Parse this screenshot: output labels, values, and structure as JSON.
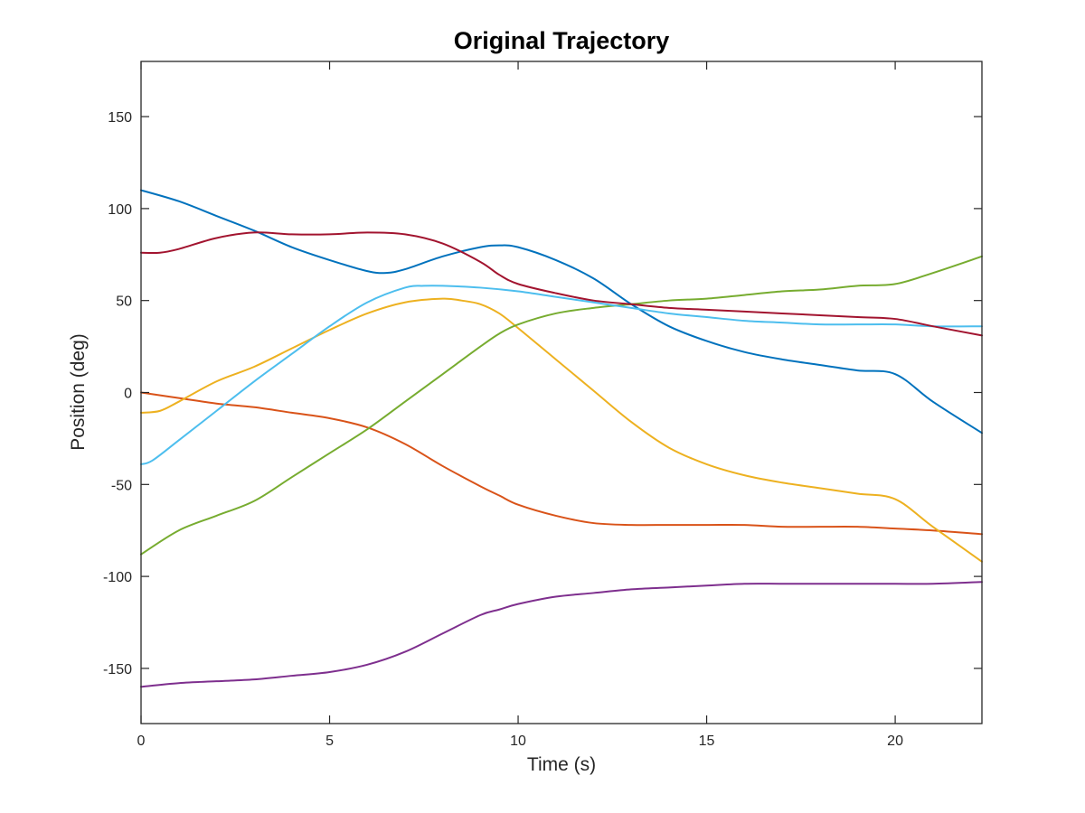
{
  "chart_data": {
    "type": "line",
    "title": "Original Trajectory",
    "xlabel": "Time (s)",
    "ylabel": "Position (deg)",
    "xlim": [
      0,
      22.3
    ],
    "ylim": [
      -180,
      180
    ],
    "xticks": [
      0,
      5,
      10,
      15,
      20
    ],
    "xtick_labels": [
      "0",
      "5",
      "10",
      "15",
      "20"
    ],
    "yticks": [
      -150,
      -100,
      -50,
      0,
      50,
      100,
      150
    ],
    "ytick_labels": [
      "-150",
      "-100",
      "-50",
      "0",
      "50",
      "100",
      "150"
    ],
    "grid": false,
    "legend": "none",
    "series": [
      {
        "color": "#0072BD",
        "x": [
          0,
          1,
          2,
          3,
          4,
          5,
          6,
          6.5,
          7,
          8,
          9,
          9.5,
          10,
          11,
          12,
          13,
          14,
          15,
          16,
          17,
          18,
          19,
          20,
          21,
          22.3
        ],
        "y": [
          110,
          104,
          96,
          88,
          79,
          72,
          66,
          65,
          67,
          74,
          79,
          80,
          79,
          72,
          62,
          48,
          36,
          28,
          22,
          18,
          15,
          12,
          10,
          -5,
          -22
        ]
      },
      {
        "color": "#D95319",
        "x": [
          0,
          1,
          2,
          3,
          4,
          5,
          6,
          7,
          8,
          9,
          9.5,
          10,
          11,
          12,
          13,
          14,
          15,
          16,
          17,
          18,
          19,
          20,
          21,
          22.3
        ],
        "y": [
          0,
          -3,
          -6,
          -8,
          -11,
          -14,
          -19,
          -28,
          -40,
          -51,
          -56,
          -61,
          -67,
          -71,
          -72,
          -72,
          -72,
          -72,
          -73,
          -73,
          -73,
          -74,
          -75,
          -77
        ]
      },
      {
        "color": "#EDB120",
        "x": [
          0,
          0.5,
          1,
          2,
          3,
          4,
          5,
          6,
          7,
          8,
          8.5,
          9,
          9.5,
          10,
          11,
          12,
          13,
          14,
          15,
          16,
          17,
          18,
          19,
          20,
          21,
          22.3
        ],
        "y": [
          -11,
          -10,
          -5,
          6,
          14,
          24,
          34,
          43,
          49,
          51,
          50,
          48,
          43,
          35,
          18,
          1,
          -16,
          -30,
          -39,
          -45,
          -49,
          -52,
          -55,
          -58,
          -73,
          -92
        ]
      },
      {
        "color": "#7E2F8E",
        "x": [
          0,
          1,
          2,
          3,
          4,
          5,
          6,
          7,
          8,
          9,
          9.5,
          10,
          11,
          12,
          13,
          14,
          15,
          16,
          17,
          18,
          19,
          20,
          21,
          22.3
        ],
        "y": [
          -160,
          -158,
          -157,
          -156,
          -154,
          -152,
          -148,
          -141,
          -131,
          -121,
          -118,
          -115,
          -111,
          -109,
          -107,
          -106,
          -105,
          -104,
          -104,
          -104,
          -104,
          -104,
          -104,
          -103
        ]
      },
      {
        "color": "#77AC30",
        "x": [
          0,
          1,
          2,
          3,
          4,
          5,
          6,
          7,
          8,
          9,
          9.5,
          10,
          11,
          12,
          13,
          14,
          15,
          16,
          17,
          18,
          19,
          20,
          21,
          22.3
        ],
        "y": [
          -88,
          -75,
          -67,
          -59,
          -46,
          -33,
          -20,
          -5,
          10,
          25,
          32,
          37,
          43,
          46,
          48,
          50,
          51,
          53,
          55,
          56,
          58,
          59,
          65,
          74
        ]
      },
      {
        "color": "#4DBEEE",
        "x": [
          0,
          0.3,
          1,
          2,
          3,
          4,
          5,
          6,
          7,
          7.5,
          8,
          9,
          10,
          11,
          12,
          13,
          14,
          15,
          16,
          17,
          18,
          19,
          20,
          21,
          22.3
        ],
        "y": [
          -39,
          -37,
          -26,
          -10,
          6,
          21,
          36,
          49,
          57,
          58,
          58,
          57,
          55,
          52,
          49,
          46,
          43,
          41,
          39,
          38,
          37,
          37,
          37,
          36,
          36
        ]
      },
      {
        "color": "#A2142F",
        "x": [
          0,
          0.5,
          1,
          2,
          3,
          4,
          5,
          6,
          7,
          8,
          9,
          9.5,
          10,
          11,
          12,
          13,
          14,
          15,
          16,
          17,
          18,
          19,
          20,
          21,
          22.3
        ],
        "y": [
          76,
          76,
          78,
          84,
          87,
          86,
          86,
          87,
          86,
          81,
          71,
          64,
          59,
          54,
          50,
          48,
          46,
          45,
          44,
          43,
          42,
          41,
          40,
          36,
          31
        ]
      }
    ]
  }
}
